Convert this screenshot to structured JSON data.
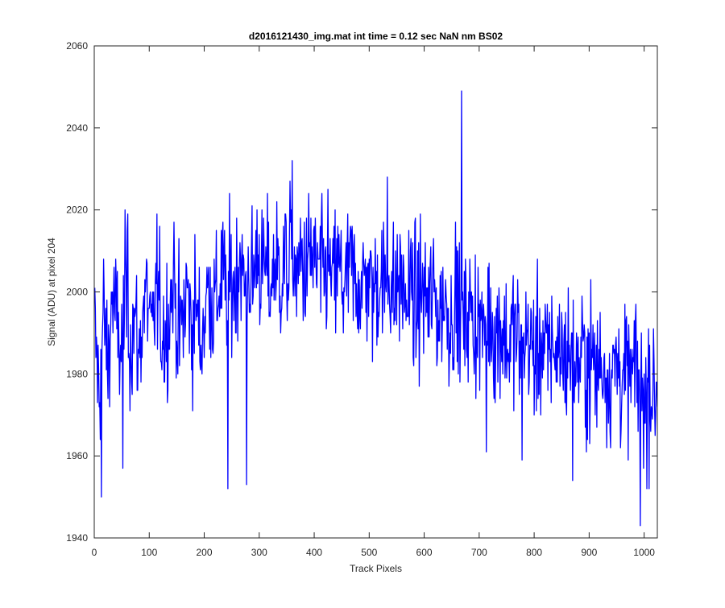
{
  "chart_data": {
    "type": "line",
    "title": "d2016121430_img.mat int time = 0.12 sec  NaN nm BS02",
    "xlabel": "Track Pixels",
    "ylabel": "Signal (ADU) at pixel 204",
    "xlim": [
      0,
      1024
    ],
    "ylim": [
      1940,
      2060
    ],
    "xticks": [
      0,
      100,
      200,
      300,
      400,
      500,
      600,
      700,
      800,
      900,
      1000
    ],
    "yticks": [
      1940,
      1960,
      1980,
      2000,
      2020,
      2040,
      2060
    ],
    "grid": false,
    "legend": "none",
    "colors": {
      "series": "#0000ff",
      "axes": "#262626"
    },
    "series": [
      {
        "x_start": 1,
        "x_step": 8,
        "values": [
          1990,
          1975,
          1995,
          1982,
          2000,
          1991,
          1985,
          2002,
          1988,
          1994,
          1983,
          1997,
          1999,
          1986,
          2003,
          1992,
          1990,
          1996,
          2004,
          1989,
          1993,
          2001,
          1991,
          1998,
          1987,
          1995,
          2002,
          1996,
          1999,
          2006,
          1997,
          2003,
          2001,
          2010,
          2000,
          2005,
          2002,
          2012,
          2004,
          2006,
          2001,
          2008,
          2003,
          2007,
          2005,
          2011,
          2002,
          2009,
          2004,
          2010,
          2006,
          2005,
          2003,
          2008,
          2001,
          2006,
          2004,
          2000,
          2007,
          2002,
          2003,
          2001,
          2005,
          1999,
          2002,
          2004,
          2000,
          2006,
          1998,
          2003,
          2001,
          1997,
          2002,
          1995,
          2000,
          1999,
          1996,
          2001,
          1994,
          1998,
          1997,
          1993,
          1999,
          1995,
          1991,
          1997,
          1992,
          1994,
          1989,
          1993,
          1995,
          1988,
          1992,
          1990,
          1986,
          1991,
          1989,
          1985,
          1990,
          1987,
          1984,
          1988,
          1986,
          1983,
          1989,
          1985,
          1987,
          1984,
          1986,
          1983,
          1982,
          1985,
          1981,
          1984,
          1980,
          1983,
          1982,
          1979,
          1981,
          1983,
          1978,
          1980,
          1979,
          1981,
          1977,
          1975,
          1979,
          1976
        ]
      }
    ],
    "extremes": [
      {
        "x": 13,
        "y": 1950
      },
      {
        "x": 52,
        "y": 1957
      },
      {
        "x": 61,
        "y": 2019
      },
      {
        "x": 243,
        "y": 1952
      },
      {
        "x": 277,
        "y": 1953
      },
      {
        "x": 356,
        "y": 2027
      },
      {
        "x": 533,
        "y": 2028
      },
      {
        "x": 668,
        "y": 2049
      },
      {
        "x": 713,
        "y": 1961
      },
      {
        "x": 778,
        "y": 1959
      },
      {
        "x": 870,
        "y": 1954
      },
      {
        "x": 993,
        "y": 1943
      },
      {
        "x": 1005,
        "y": 1952
      },
      {
        "x": 1020,
        "y": 1965
      }
    ]
  }
}
